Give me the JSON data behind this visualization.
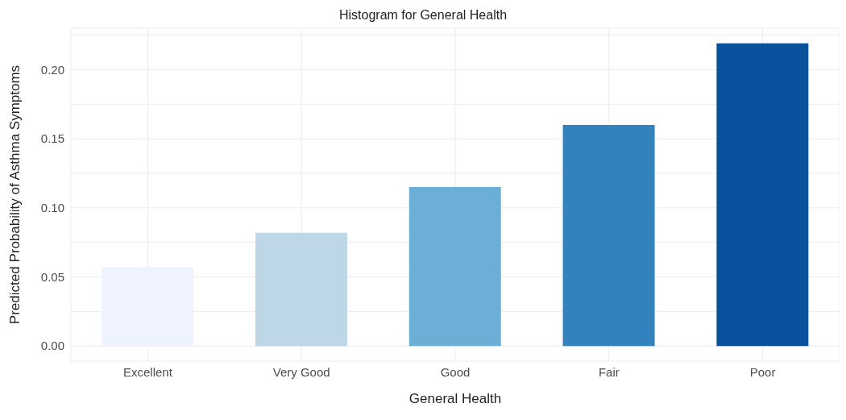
{
  "chart_data": {
    "type": "bar",
    "title": "Histogram for General Health",
    "xlabel": "General Health",
    "ylabel": "Predicted Probability of Asthma Symptoms",
    "categories": [
      "Excellent",
      "Very Good",
      "Good",
      "Fair",
      "Poor"
    ],
    "values": [
      0.057,
      0.082,
      0.115,
      0.16,
      0.219
    ],
    "colors": [
      "#eff3ff",
      "#bdd7e7",
      "#6baed6",
      "#3182bd",
      "#08519c"
    ],
    "ylim": [
      -0.011,
      0.23
    ],
    "yticks": [
      {
        "value": 0,
        "label": "0.00"
      },
      {
        "value": 0.025,
        "label": null
      },
      0.05,
      {
        "value": 0.075,
        "label": null
      },
      {
        "value": 0.1,
        "label": "0.10"
      },
      {
        "value": 0.125,
        "label": null
      },
      0.15,
      {
        "value": 0.175,
        "label": null
      },
      {
        "value": 0.2,
        "label": "0.20"
      },
      {
        "value": 0.225,
        "label": null
      }
    ],
    "grid": true
  }
}
